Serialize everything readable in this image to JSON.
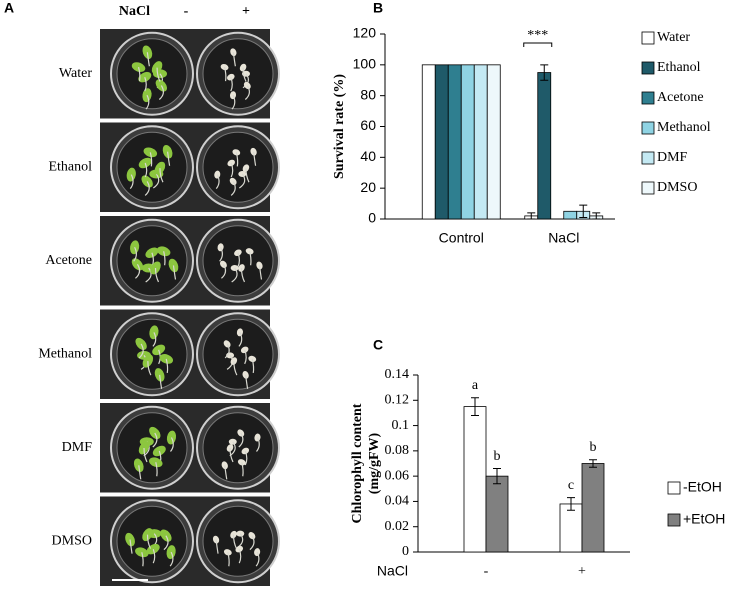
{
  "photo_panel": {
    "label": "A",
    "treatment": "NaCl",
    "columns": [
      "-",
      "+"
    ],
    "rows": [
      "Water",
      "Ethanol",
      "Acetone",
      "Methanol",
      "DMF",
      "DMSO"
    ]
  },
  "chart_data": [
    {
      "type": "bar",
      "panel": "B",
      "y_label": "Survival rate (%)",
      "categories": [
        "Control",
        "NaCl"
      ],
      "series": [
        {
          "name": "Water",
          "color": "#ffffff",
          "values": [
            100,
            2
          ],
          "errors": [
            0,
            2
          ]
        },
        {
          "name": "Ethanol",
          "color": "#1f5a69",
          "values": [
            100,
            95
          ],
          "errors": [
            0,
            5
          ]
        },
        {
          "name": "Acetone",
          "color": "#2f7f90",
          "values": [
            100,
            0
          ],
          "errors": [
            0,
            0
          ]
        },
        {
          "name": "Methanol",
          "color": "#8fd3e3",
          "values": [
            100,
            5
          ],
          "errors": [
            0,
            0
          ]
        },
        {
          "name": "DMF",
          "color": "#c4e9f3",
          "values": [
            100,
            5
          ],
          "errors": [
            0,
            4
          ]
        },
        {
          "name": "DMSO",
          "color": "#eef8fb",
          "values": [
            100,
            2
          ],
          "errors": [
            0,
            2
          ]
        }
      ],
      "significance": "***",
      "ylim": [
        0,
        120
      ],
      "yticks": [
        0,
        20,
        40,
        60,
        80,
        100,
        120
      ]
    },
    {
      "type": "bar",
      "panel": "C",
      "y_label": [
        "Chlorophyll content",
        "(mg/gFW)"
      ],
      "x_label": "NaCl",
      "categories": [
        "-",
        "+"
      ],
      "series": [
        {
          "name": "-EtOH",
          "color": "#ffffff",
          "values": [
            0.115,
            0.038
          ],
          "errors": [
            0.007,
            0.005
          ],
          "letters": [
            "a",
            "c"
          ]
        },
        {
          "name": "+EtOH",
          "color": "#808080",
          "values": [
            0.06,
            0.07
          ],
          "errors": [
            0.006,
            0.003
          ],
          "letters": [
            "b",
            "b"
          ]
        }
      ],
      "ylim": [
        0,
        0.14
      ],
      "yticks": [
        0,
        0.02,
        0.04,
        0.06,
        0.08,
        0.1,
        0.12,
        0.14
      ]
    }
  ]
}
